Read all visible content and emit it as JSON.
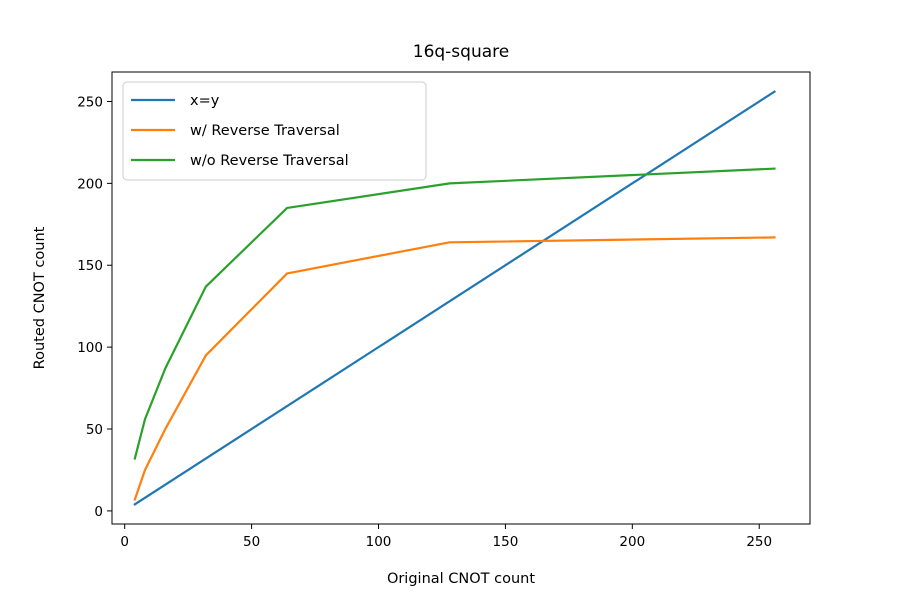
{
  "chart_data": {
    "type": "line",
    "title": "16q-square",
    "xlabel": "Original CNOT count",
    "ylabel": "Routed CNOT count",
    "xlim": [
      -5,
      270
    ],
    "ylim": [
      -8,
      268
    ],
    "xticks": [
      0,
      50,
      100,
      150,
      200,
      250
    ],
    "yticks": [
      0,
      50,
      100,
      150,
      200,
      250
    ],
    "grid": false,
    "legend_position": "top-left",
    "series": [
      {
        "name": "x=y",
        "color": "#1f77b4",
        "x": [
          4,
          256
        ],
        "y": [
          4,
          256
        ]
      },
      {
        "name": "w/ Reverse Traversal",
        "color": "#ff7f0e",
        "x": [
          4,
          8,
          16,
          32,
          64,
          128,
          256
        ],
        "y": [
          7,
          25,
          50,
          95,
          145,
          164,
          167
        ]
      },
      {
        "name": "w/o Reverse Traversal",
        "color": "#2ca02c",
        "x": [
          4,
          8,
          16,
          32,
          64,
          128,
          256
        ],
        "y": [
          32,
          56,
          87,
          137,
          185,
          200,
          209
        ]
      }
    ]
  }
}
